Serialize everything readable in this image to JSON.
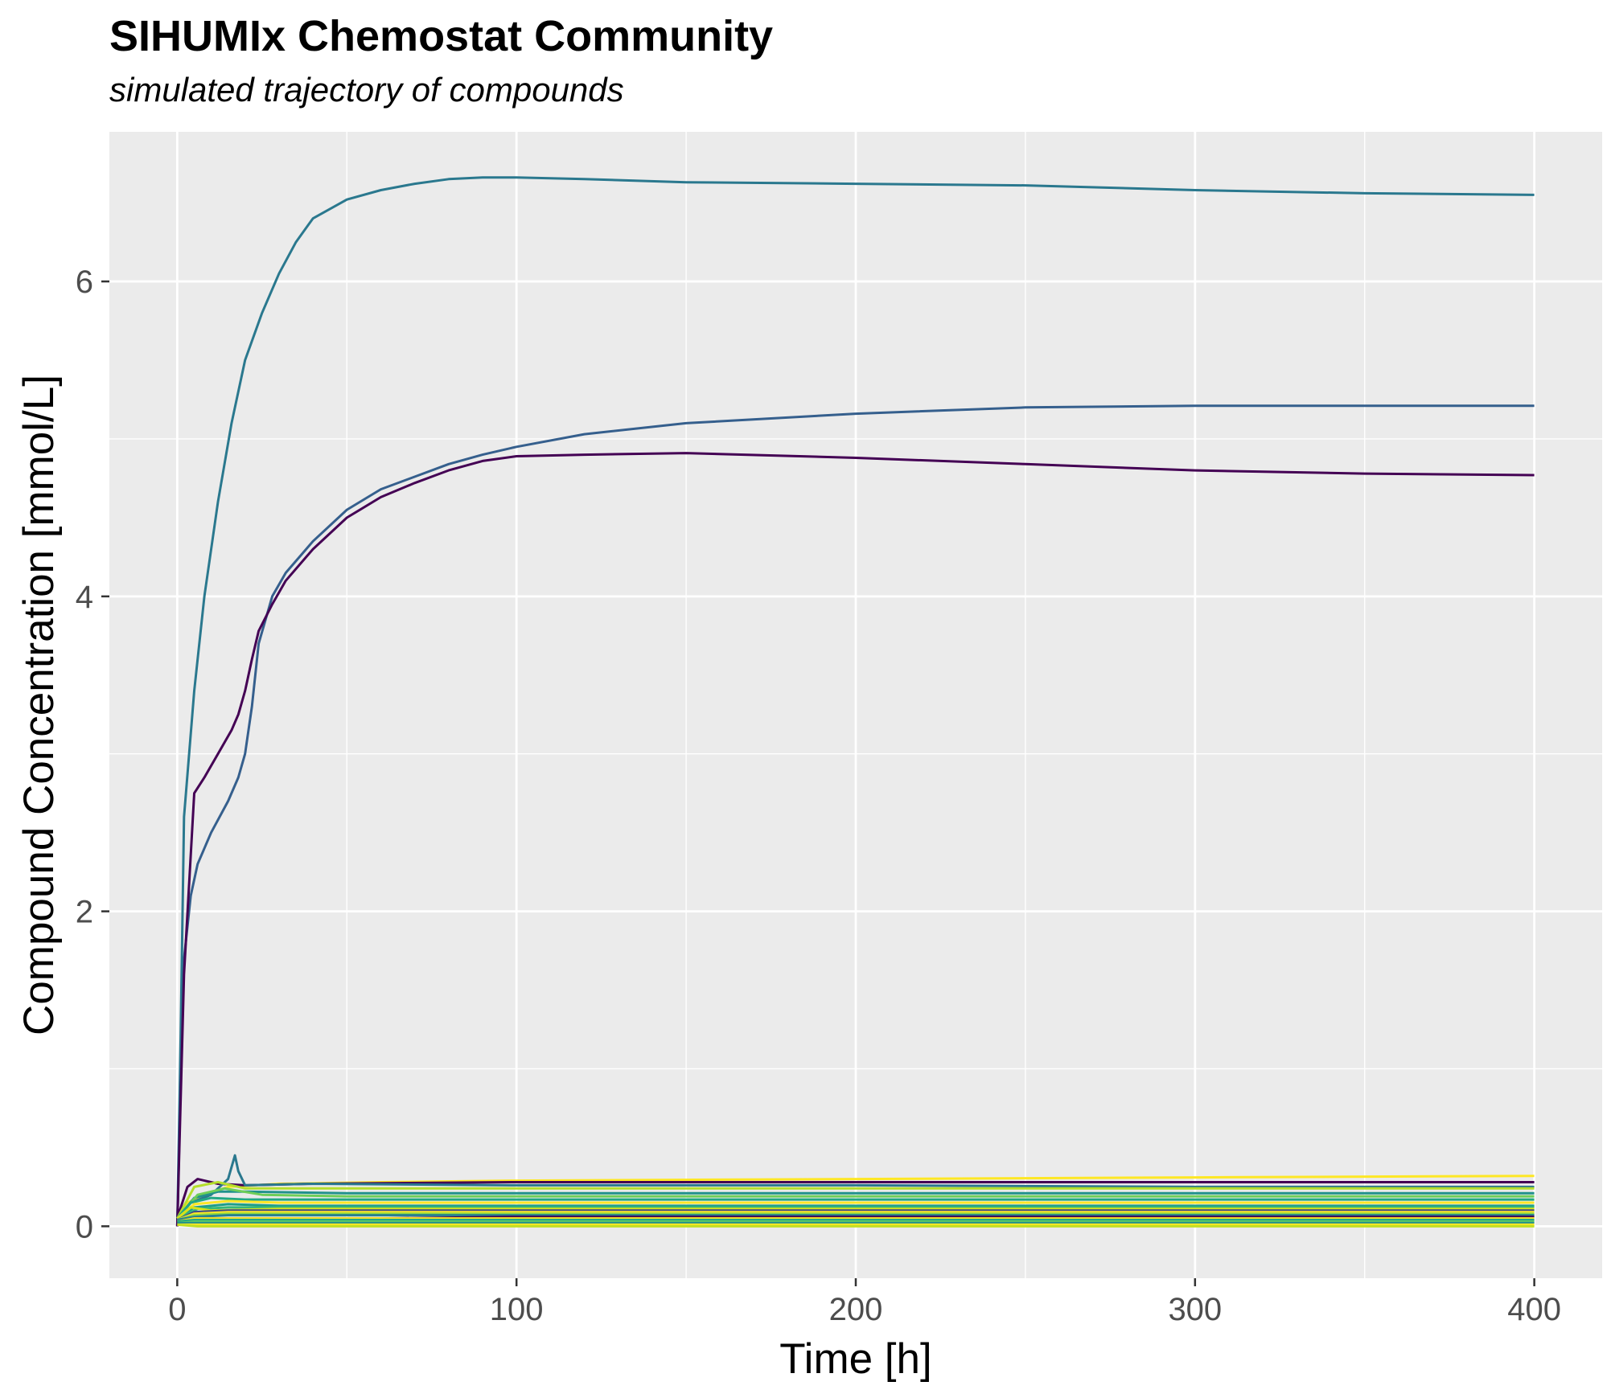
{
  "chart_data": {
    "type": "line",
    "title": "SIHUMIx Chemostat Community",
    "subtitle": "simulated trajectory of compounds",
    "xlabel": "Time [h]",
    "ylabel": "Compound Concentration [mmol/L]",
    "xlim": [
      -20,
      420
    ],
    "ylim": [
      -0.33,
      6.95
    ],
    "x_ticks": [
      0,
      100,
      200,
      300,
      400
    ],
    "y_ticks": [
      0,
      2,
      4,
      6
    ],
    "x_tick_labels": [
      "0",
      "100",
      "200",
      "300",
      "400"
    ],
    "y_tick_labels": [
      "0",
      "2",
      "4",
      "6"
    ],
    "grid": true,
    "background": "#ebebeb",
    "legend": "none",
    "series": [
      {
        "color": "#2a788e",
        "points": [
          [
            0,
            0
          ],
          [
            1,
            1.2
          ],
          [
            2,
            2.6
          ],
          [
            5,
            3.4
          ],
          [
            8,
            4.0
          ],
          [
            12,
            4.6
          ],
          [
            16,
            5.1
          ],
          [
            20,
            5.5
          ],
          [
            25,
            5.8
          ],
          [
            30,
            6.05
          ],
          [
            35,
            6.25
          ],
          [
            40,
            6.4
          ],
          [
            50,
            6.52
          ],
          [
            60,
            6.58
          ],
          [
            70,
            6.62
          ],
          [
            80,
            6.65
          ],
          [
            90,
            6.66
          ],
          [
            100,
            6.66
          ],
          [
            120,
            6.65
          ],
          [
            150,
            6.63
          ],
          [
            200,
            6.62
          ],
          [
            250,
            6.61
          ],
          [
            300,
            6.58
          ],
          [
            350,
            6.56
          ],
          [
            400,
            6.55
          ]
        ]
      },
      {
        "color": "#355f8d",
        "points": [
          [
            0,
            0
          ],
          [
            1,
            0.9
          ],
          [
            2,
            1.7
          ],
          [
            4,
            2.1
          ],
          [
            6,
            2.3
          ],
          [
            10,
            2.5
          ],
          [
            15,
            2.7
          ],
          [
            18,
            2.85
          ],
          [
            20,
            3.0
          ],
          [
            22,
            3.3
          ],
          [
            24,
            3.7
          ],
          [
            28,
            4.0
          ],
          [
            32,
            4.15
          ],
          [
            40,
            4.35
          ],
          [
            50,
            4.55
          ],
          [
            60,
            4.68
          ],
          [
            70,
            4.76
          ],
          [
            80,
            4.84
          ],
          [
            90,
            4.9
          ],
          [
            100,
            4.95
          ],
          [
            120,
            5.03
          ],
          [
            150,
            5.1
          ],
          [
            200,
            5.16
          ],
          [
            250,
            5.2
          ],
          [
            300,
            5.21
          ],
          [
            350,
            5.21
          ],
          [
            400,
            5.21
          ]
        ]
      },
      {
        "color": "#440154",
        "points": [
          [
            0,
            0
          ],
          [
            1,
            0.8
          ],
          [
            2,
            1.6
          ],
          [
            5,
            2.75
          ],
          [
            8,
            2.85
          ],
          [
            12,
            3.0
          ],
          [
            16,
            3.15
          ],
          [
            18,
            3.25
          ],
          [
            20,
            3.4
          ],
          [
            22,
            3.6
          ],
          [
            24,
            3.78
          ],
          [
            28,
            3.95
          ],
          [
            32,
            4.1
          ],
          [
            40,
            4.3
          ],
          [
            50,
            4.5
          ],
          [
            60,
            4.63
          ],
          [
            70,
            4.72
          ],
          [
            80,
            4.8
          ],
          [
            90,
            4.86
          ],
          [
            100,
            4.89
          ],
          [
            120,
            4.9
          ],
          [
            150,
            4.91
          ],
          [
            200,
            4.88
          ],
          [
            250,
            4.84
          ],
          [
            300,
            4.8
          ],
          [
            350,
            4.78
          ],
          [
            400,
            4.77
          ]
        ]
      },
      {
        "color": "#fde725",
        "points": [
          [
            0,
            0.05
          ],
          [
            3,
            0.15
          ],
          [
            8,
            0.2
          ],
          [
            15,
            0.25
          ],
          [
            30,
            0.27
          ],
          [
            60,
            0.28
          ],
          [
            100,
            0.29
          ],
          [
            200,
            0.3
          ],
          [
            300,
            0.31
          ],
          [
            400,
            0.32
          ]
        ]
      },
      {
        "color": "#440154",
        "points": [
          [
            0,
            0.05
          ],
          [
            3,
            0.25
          ],
          [
            6,
            0.3
          ],
          [
            12,
            0.27
          ],
          [
            20,
            0.26
          ],
          [
            40,
            0.27
          ],
          [
            100,
            0.28
          ],
          [
            200,
            0.28
          ],
          [
            300,
            0.28
          ],
          [
            400,
            0.28
          ]
        ]
      },
      {
        "color": "#2a788e",
        "points": [
          [
            0,
            0.05
          ],
          [
            4,
            0.15
          ],
          [
            10,
            0.2
          ],
          [
            15,
            0.3
          ],
          [
            17,
            0.45
          ],
          [
            18,
            0.35
          ],
          [
            20,
            0.26
          ],
          [
            40,
            0.27
          ],
          [
            100,
            0.26
          ],
          [
            200,
            0.26
          ],
          [
            300,
            0.25
          ],
          [
            400,
            0.25
          ]
        ]
      },
      {
        "color": "#b5de2b",
        "points": [
          [
            0,
            0.05
          ],
          [
            5,
            0.25
          ],
          [
            12,
            0.28
          ],
          [
            20,
            0.24
          ],
          [
            50,
            0.24
          ],
          [
            100,
            0.24
          ],
          [
            200,
            0.24
          ],
          [
            300,
            0.24
          ],
          [
            400,
            0.24
          ]
        ]
      },
      {
        "color": "#21918c",
        "points": [
          [
            0,
            0.05
          ],
          [
            5,
            0.18
          ],
          [
            12,
            0.22
          ],
          [
            20,
            0.22
          ],
          [
            50,
            0.21
          ],
          [
            100,
            0.21
          ],
          [
            200,
            0.21
          ],
          [
            300,
            0.21
          ],
          [
            400,
            0.21
          ]
        ]
      },
      {
        "color": "#6ece58",
        "points": [
          [
            0,
            0.05
          ],
          [
            6,
            0.2
          ],
          [
            14,
            0.24
          ],
          [
            25,
            0.2
          ],
          [
            50,
            0.19
          ],
          [
            100,
            0.19
          ],
          [
            200,
            0.19
          ],
          [
            300,
            0.19
          ],
          [
            400,
            0.19
          ]
        ]
      },
      {
        "color": "#22a884",
        "points": [
          [
            0,
            0.05
          ],
          [
            4,
            0.15
          ],
          [
            10,
            0.18
          ],
          [
            20,
            0.17
          ],
          [
            50,
            0.17
          ],
          [
            100,
            0.17
          ],
          [
            200,
            0.17
          ],
          [
            300,
            0.17
          ],
          [
            400,
            0.17
          ]
        ]
      },
      {
        "color": "#fde725",
        "points": [
          [
            0,
            0.05
          ],
          [
            5,
            0.14
          ],
          [
            15,
            0.16
          ],
          [
            30,
            0.15
          ],
          [
            100,
            0.15
          ],
          [
            200,
            0.15
          ],
          [
            300,
            0.15
          ],
          [
            400,
            0.15
          ]
        ]
      },
      {
        "color": "#1f9e89",
        "points": [
          [
            0,
            0.05
          ],
          [
            5,
            0.12
          ],
          [
            15,
            0.14
          ],
          [
            30,
            0.13
          ],
          [
            100,
            0.13
          ],
          [
            200,
            0.13
          ],
          [
            300,
            0.13
          ],
          [
            400,
            0.13
          ]
        ]
      },
      {
        "color": "#35b779",
        "points": [
          [
            0,
            0.05
          ],
          [
            6,
            0.11
          ],
          [
            15,
            0.12
          ],
          [
            40,
            0.12
          ],
          [
            100,
            0.12
          ],
          [
            200,
            0.12
          ],
          [
            300,
            0.12
          ],
          [
            400,
            0.12
          ]
        ]
      },
      {
        "color": "#d8e219",
        "points": [
          [
            0,
            0.05
          ],
          [
            4,
            0.12
          ],
          [
            10,
            0.1
          ],
          [
            30,
            0.11
          ],
          [
            100,
            0.11
          ],
          [
            200,
            0.11
          ],
          [
            300,
            0.11
          ],
          [
            400,
            0.11
          ]
        ]
      },
      {
        "color": "#3e4989",
        "points": [
          [
            0,
            0.04
          ],
          [
            5,
            0.09
          ],
          [
            15,
            0.1
          ],
          [
            40,
            0.1
          ],
          [
            100,
            0.1
          ],
          [
            200,
            0.1
          ],
          [
            300,
            0.1
          ],
          [
            400,
            0.1
          ]
        ]
      },
      {
        "color": "#fde725",
        "points": [
          [
            0,
            0.04
          ],
          [
            5,
            0.08
          ],
          [
            15,
            0.09
          ],
          [
            40,
            0.09
          ],
          [
            100,
            0.09
          ],
          [
            200,
            0.09
          ],
          [
            300,
            0.09
          ],
          [
            400,
            0.09
          ]
        ]
      },
      {
        "color": "#90d743",
        "points": [
          [
            0,
            0.04
          ],
          [
            5,
            0.07
          ],
          [
            15,
            0.08
          ],
          [
            40,
            0.08
          ],
          [
            100,
            0.08
          ],
          [
            200,
            0.08
          ],
          [
            300,
            0.08
          ],
          [
            400,
            0.08
          ]
        ]
      },
      {
        "color": "#26828e",
        "points": [
          [
            0,
            0.04
          ],
          [
            5,
            0.06
          ],
          [
            15,
            0.07
          ],
          [
            40,
            0.07
          ],
          [
            100,
            0.07
          ],
          [
            200,
            0.07
          ],
          [
            300,
            0.07
          ],
          [
            400,
            0.07
          ]
        ]
      },
      {
        "color": "#440154",
        "points": [
          [
            0,
            0.03
          ],
          [
            5,
            0.05
          ],
          [
            15,
            0.05
          ],
          [
            60,
            0.05
          ],
          [
            100,
            0.06
          ],
          [
            200,
            0.06
          ],
          [
            300,
            0.06
          ],
          [
            400,
            0.06
          ]
        ]
      },
      {
        "color": "#fde725",
        "points": [
          [
            0,
            0.03
          ],
          [
            5,
            0.05
          ],
          [
            15,
            0.05
          ],
          [
            40,
            0.05
          ],
          [
            100,
            0.05
          ],
          [
            200,
            0.05
          ],
          [
            300,
            0.05
          ],
          [
            400,
            0.05
          ]
        ]
      },
      {
        "color": "#22a884",
        "points": [
          [
            0,
            0.03
          ],
          [
            5,
            0.04
          ],
          [
            15,
            0.04
          ],
          [
            40,
            0.04
          ],
          [
            100,
            0.04
          ],
          [
            200,
            0.04
          ],
          [
            300,
            0.04
          ],
          [
            400,
            0.04
          ]
        ]
      },
      {
        "color": "#5ec962",
        "points": [
          [
            0,
            0.02
          ],
          [
            5,
            0.03
          ],
          [
            15,
            0.03
          ],
          [
            40,
            0.03
          ],
          [
            100,
            0.03
          ],
          [
            200,
            0.03
          ],
          [
            300,
            0.03
          ],
          [
            400,
            0.03
          ]
        ]
      },
      {
        "color": "#21918c",
        "points": [
          [
            0,
            0.02
          ],
          [
            5,
            0.02
          ],
          [
            15,
            0.02
          ],
          [
            40,
            0.02
          ],
          [
            100,
            0.02
          ],
          [
            200,
            0.02
          ],
          [
            300,
            0.02
          ],
          [
            400,
            0.02
          ]
        ]
      },
      {
        "color": "#fde725",
        "points": [
          [
            0,
            0.01
          ],
          [
            5,
            0.01
          ],
          [
            15,
            0.01
          ],
          [
            40,
            0.01
          ],
          [
            100,
            0.01
          ],
          [
            200,
            0.01
          ],
          [
            300,
            0.01
          ],
          [
            400,
            0.01
          ]
        ]
      },
      {
        "color": "#c2df23",
        "points": [
          [
            0,
            0.01
          ],
          [
            6,
            0.0
          ],
          [
            40,
            0.0
          ],
          [
            100,
            0.0
          ],
          [
            200,
            0.0
          ],
          [
            300,
            0.0
          ],
          [
            400,
            0.0
          ]
        ]
      }
    ]
  }
}
